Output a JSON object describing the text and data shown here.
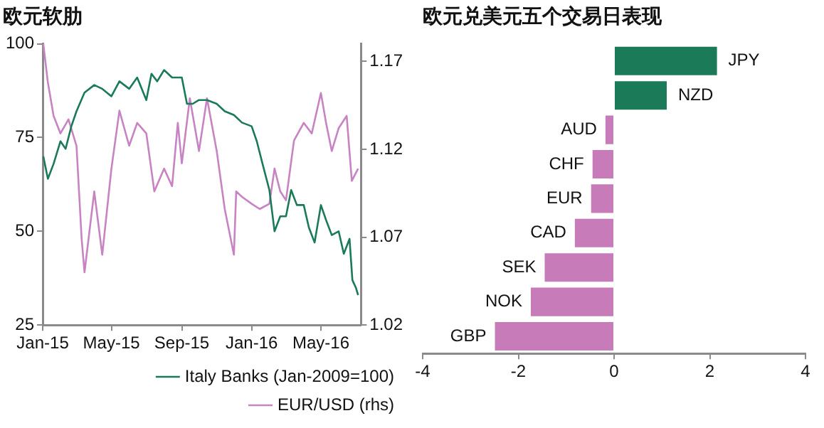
{
  "chart_data": [
    {
      "type": "line",
      "title": "欧元软肋",
      "xlim": [
        "2015-01-01",
        "2016-07-10"
      ],
      "xticks": [
        {
          "value": "2015-01-01",
          "label": "Jan-15"
        },
        {
          "value": "2015-05-01",
          "label": "May-15"
        },
        {
          "value": "2015-09-01",
          "label": "Sep-15"
        },
        {
          "value": "2016-01-01",
          "label": "Jan-16"
        },
        {
          "value": "2016-05-01",
          "label": "May-16"
        }
      ],
      "ylim": [
        25,
        100
      ],
      "yticks": [
        25,
        50,
        75,
        100
      ],
      "y2lim": [
        1.02,
        1.18
      ],
      "y2ticks": [
        1.02,
        1.07,
        1.12,
        1.17
      ],
      "grid": false,
      "legend": "bottom",
      "marker": "none",
      "series": [
        {
          "name": "Italy Banks (Jan-2009=100)",
          "color": "#1b7a57",
          "x": [
            "2015-01-02",
            "2015-01-10",
            "2015-01-20",
            "2015-02-01",
            "2015-02-10",
            "2015-02-20",
            "2015-03-01",
            "2015-03-15",
            "2015-04-01",
            "2015-04-15",
            "2015-05-01",
            "2015-05-15",
            "2015-06-01",
            "2015-06-15",
            "2015-07-01",
            "2015-07-10",
            "2015-07-20",
            "2015-08-01",
            "2015-08-15",
            "2015-09-01",
            "2015-09-10",
            "2015-09-20",
            "2015-10-01",
            "2015-10-15",
            "2015-11-01",
            "2015-11-15",
            "2015-12-01",
            "2015-12-15",
            "2016-01-01",
            "2016-01-10",
            "2016-01-20",
            "2016-02-01",
            "2016-02-10",
            "2016-02-20",
            "2016-03-01",
            "2016-03-10",
            "2016-03-20",
            "2016-04-01",
            "2016-04-10",
            "2016-04-20",
            "2016-05-01",
            "2016-05-10",
            "2016-05-20",
            "2016-06-01",
            "2016-06-10",
            "2016-06-20",
            "2016-06-25",
            "2016-07-01",
            "2016-07-05"
          ],
          "values": [
            70,
            64,
            68,
            74,
            72,
            78,
            82,
            87,
            89,
            88,
            86,
            90,
            88,
            91,
            85,
            92,
            90,
            93,
            91,
            91,
            84,
            84,
            85,
            85,
            84,
            82,
            81,
            79,
            78,
            74,
            68,
            61,
            50,
            54,
            54,
            61,
            57,
            57,
            51,
            47,
            57,
            53,
            49,
            50,
            44,
            48,
            37,
            35,
            33
          ]
        },
        {
          "name": "EUR/USD (rhs)",
          "color": "#c783c3",
          "axis": "y2",
          "x": [
            "2015-01-02",
            "2015-01-10",
            "2015-01-20",
            "2015-02-01",
            "2015-02-15",
            "2015-03-01",
            "2015-03-10",
            "2015-03-15",
            "2015-04-01",
            "2015-04-15",
            "2015-05-01",
            "2015-05-15",
            "2015-06-01",
            "2015-06-15",
            "2015-07-01",
            "2015-07-15",
            "2015-08-01",
            "2015-08-15",
            "2015-08-25",
            "2015-09-01",
            "2015-09-15",
            "2015-10-01",
            "2015-10-15",
            "2015-11-01",
            "2015-11-15",
            "2015-12-01",
            "2015-12-05",
            "2015-12-15",
            "2016-01-01",
            "2016-01-15",
            "2016-02-01",
            "2016-02-10",
            "2016-02-20",
            "2016-03-01",
            "2016-03-15",
            "2016-04-01",
            "2016-04-15",
            "2016-05-01",
            "2016-05-10",
            "2016-05-20",
            "2016-06-01",
            "2016-06-15",
            "2016-06-24",
            "2016-07-05"
          ],
          "values": [
            1.18,
            1.158,
            1.139,
            1.129,
            1.137,
            1.122,
            1.069,
            1.05,
            1.096,
            1.06,
            1.109,
            1.142,
            1.122,
            1.135,
            1.129,
            1.096,
            1.109,
            1.099,
            1.135,
            1.112,
            1.149,
            1.119,
            1.149,
            1.119,
            1.086,
            1.06,
            1.096,
            1.093,
            1.089,
            1.086,
            1.089,
            1.109,
            1.096,
            1.091,
            1.125,
            1.135,
            1.129,
            1.152,
            1.135,
            1.119,
            1.132,
            1.139,
            1.102,
            1.109
          ]
        }
      ]
    },
    {
      "type": "bar",
      "title": "欧元兑美元五个交易日表现",
      "orientation": "horizontal",
      "categories": [
        "JPY",
        "NZD",
        "AUD",
        "CHF",
        "EUR",
        "CAD",
        "SEK",
        "NOK",
        "GBP"
      ],
      "values": [
        2.15,
        1.1,
        -0.18,
        -0.45,
        -0.48,
        -0.82,
        -1.45,
        -1.74,
        -2.49
      ],
      "colors": [
        "#1b7a57",
        "#1b7a57",
        "#c77bb8",
        "#c77bb8",
        "#c77bb8",
        "#c77bb8",
        "#c77bb8",
        "#c77bb8",
        "#c77bb8"
      ],
      "xlim": [
        -4,
        4
      ],
      "xticks": [
        -4,
        -2,
        0,
        2,
        4
      ],
      "grid": false,
      "legend": false
    }
  ]
}
